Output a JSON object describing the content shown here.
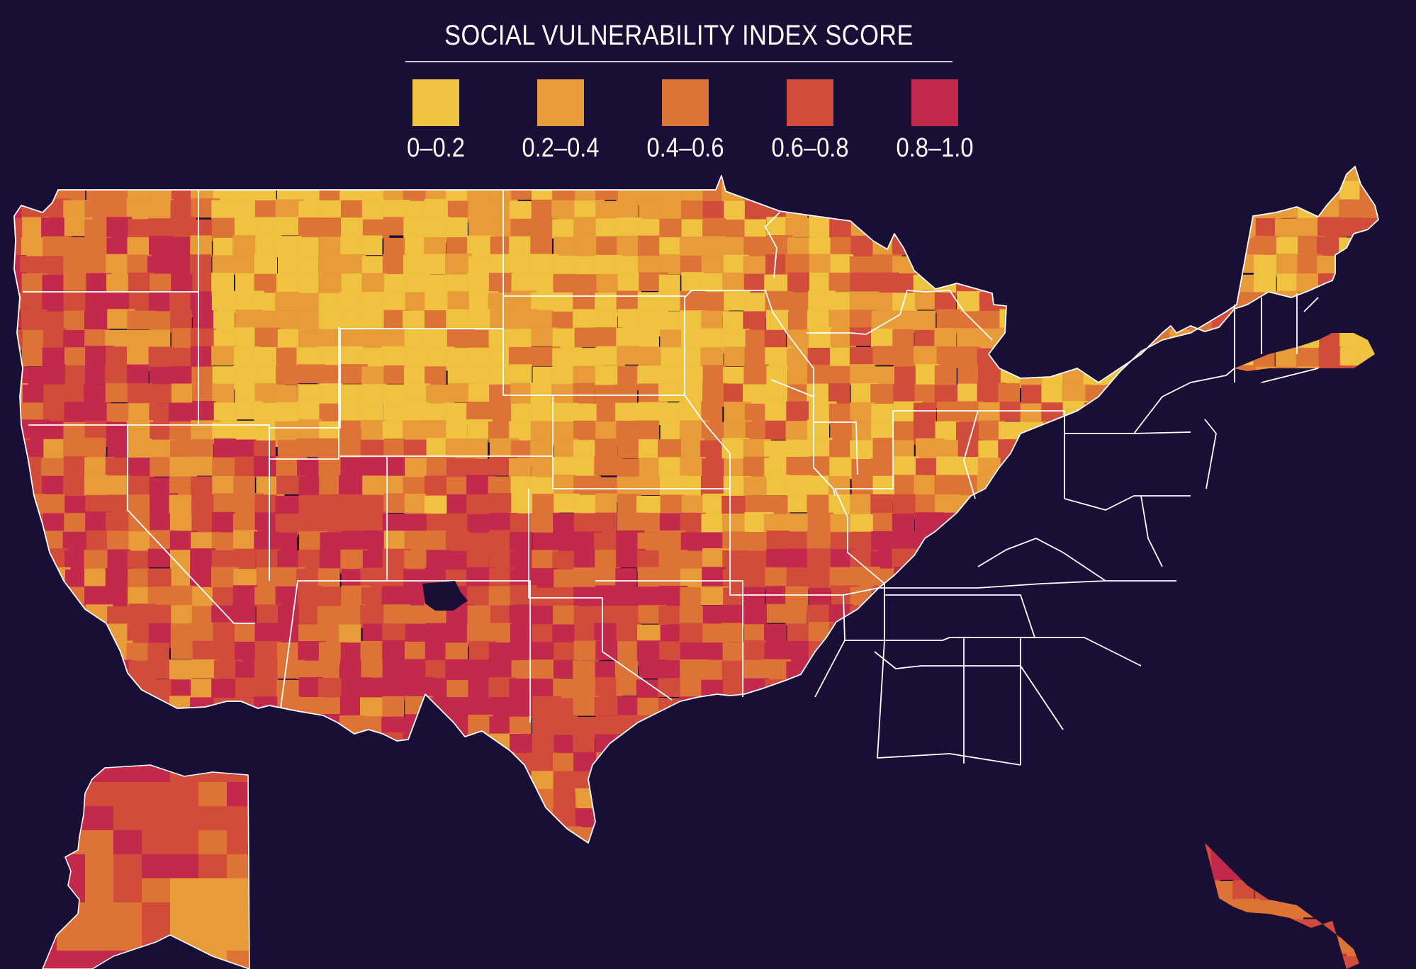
{
  "map": {
    "title": "SOCIAL VULNERABILITY INDEX SCORE",
    "background_color": "#190e36",
    "border_color": "#ffffff",
    "no_data_color": "#190e36"
  },
  "legend": {
    "items": [
      {
        "label": "0–0.2",
        "color": "#efc23f"
      },
      {
        "label": "0.2–0.4",
        "color": "#e89b39"
      },
      {
        "label": "0.4–0.6",
        "color": "#de7337"
      },
      {
        "label": "0.6–0.8",
        "color": "#d24c3c"
      },
      {
        "label": "0.8–1.0",
        "color": "#c2294b"
      }
    ]
  }
}
